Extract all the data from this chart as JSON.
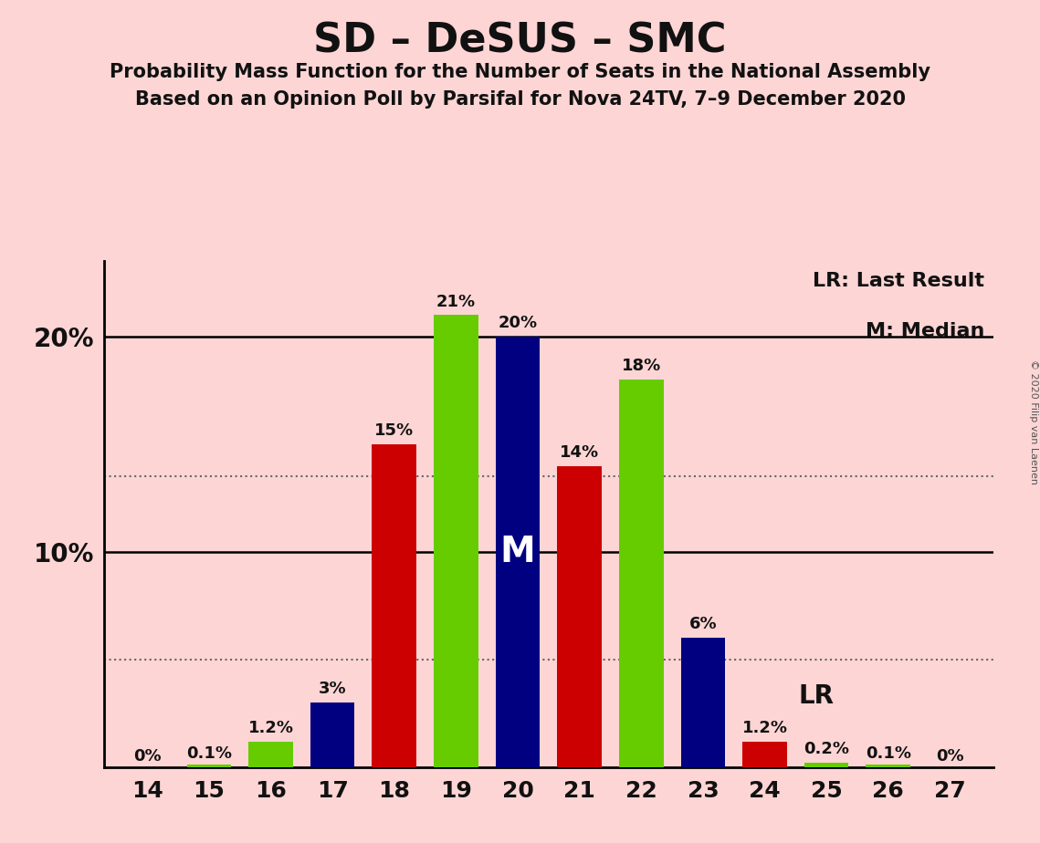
{
  "title": "SD – DeSUS – SMC",
  "subtitle1": "Probability Mass Function for the Number of Seats in the National Assembly",
  "subtitle2": "Based on an Opinion Poll by Parsifal for Nova 24TV, 7–9 December 2020",
  "copyright": "© 2020 Filip van Laenen",
  "background_color": "#fdd5d5",
  "seats": [
    14,
    15,
    16,
    17,
    18,
    19,
    20,
    21,
    22,
    23,
    24,
    25,
    26,
    27
  ],
  "values": [
    0.0,
    0.1,
    1.2,
    3.0,
    15.0,
    21.0,
    20.0,
    14.0,
    18.0,
    6.0,
    1.2,
    0.2,
    0.1,
    0.0
  ],
  "colors": [
    "#cc0000",
    "#66cc00",
    "#66cc00",
    "#000080",
    "#cc0000",
    "#66cc00",
    "#000080",
    "#cc0000",
    "#66cc00",
    "#000080",
    "#cc0000",
    "#66cc00",
    "#66cc00",
    "#cc0000"
  ],
  "labels": [
    "0%",
    "0.1%",
    "1.2%",
    "3%",
    "15%",
    "21%",
    "20%",
    "14%",
    "18%",
    "6%",
    "1.2%",
    "0.2%",
    "0.1%",
    "0%"
  ],
  "median_seat": 20,
  "last_result_seat": 24,
  "ylim": [
    0,
    23.5
  ],
  "dotted_line1": 13.5,
  "dotted_line2": 5.0,
  "green_color": "#66cc00",
  "red_color": "#cc0000",
  "blue_color": "#000080"
}
